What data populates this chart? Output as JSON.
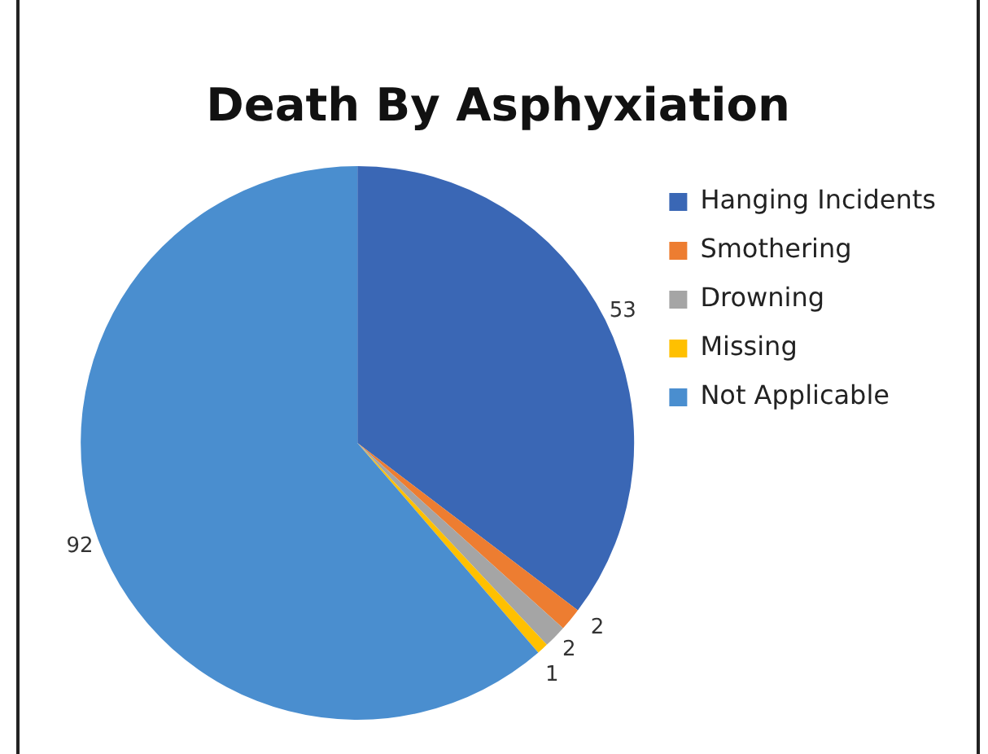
{
  "chart_data": {
    "type": "pie",
    "title": "Death By Asphyxiation",
    "categories": [
      "Hanging Incidents",
      "Smothering",
      "Drowning",
      "Missing",
      "Not Applicable"
    ],
    "values": [
      53,
      2,
      2,
      1,
      92
    ],
    "colors": [
      "#3a67b5",
      "#ed7d31",
      "#a5a5a5",
      "#ffc000",
      "#4a8ecf"
    ],
    "data_labels": true,
    "legend": "right"
  }
}
